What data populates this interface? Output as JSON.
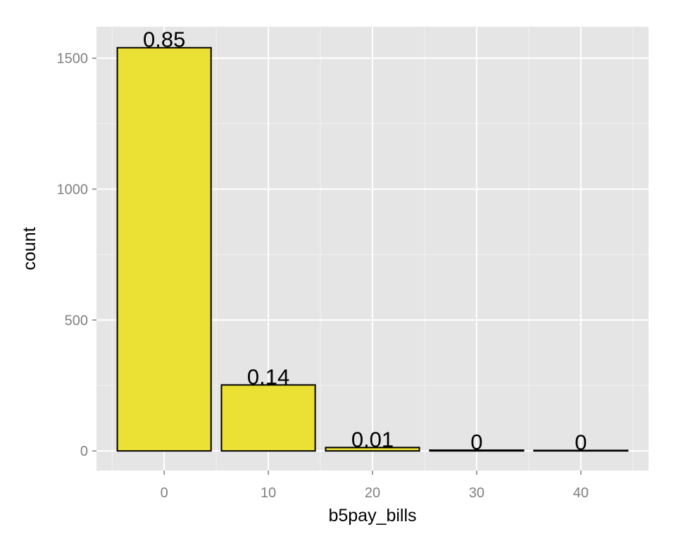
{
  "chart_data": {
    "type": "bar",
    "title": "",
    "xlabel": "b5pay_bills",
    "ylabel": "count",
    "x": [
      0,
      10,
      20,
      30,
      40
    ],
    "values": [
      1540,
      252,
      13,
      3,
      2
    ],
    "bar_labels": [
      "0.85",
      "0.14",
      "0.01",
      "0",
      "0"
    ],
    "bar_width": 9,
    "xlim": [
      -6.5,
      46.5
    ],
    "ylim": [
      -75,
      1620
    ],
    "x_ticks": [
      0,
      10,
      20,
      30,
      40
    ],
    "x_tick_labels": [
      "0",
      "10",
      "20",
      "30",
      "40"
    ],
    "y_ticks": [
      0,
      500,
      1000,
      1500
    ],
    "y_tick_labels": [
      "0",
      "500",
      "1000",
      "1500"
    ],
    "grid": true,
    "legend": "none",
    "colors": {
      "panel": "#e5e5e5",
      "grid": "#ffffff",
      "bar_fill": "#ebe034",
      "bar_stroke": "#000000",
      "tick_text": "#7f7f7f"
    }
  }
}
